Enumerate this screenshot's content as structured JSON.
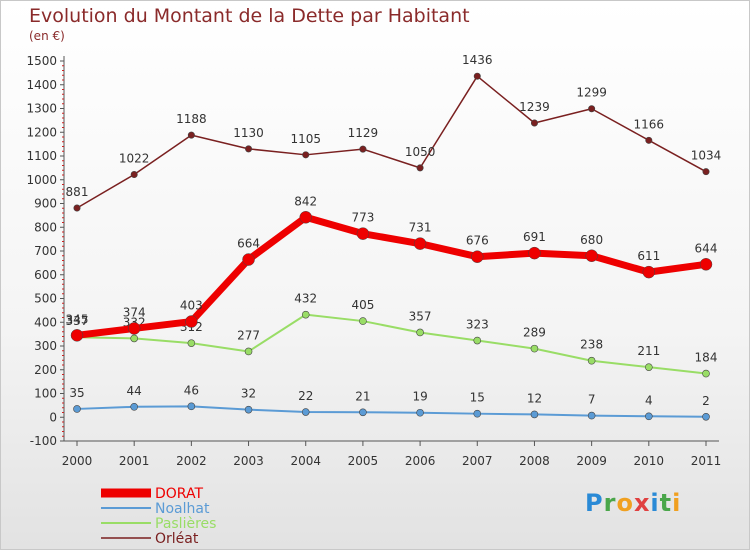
{
  "chart_data": {
    "type": "line",
    "title": "Evolution du Montant de la Dette par Habitant",
    "subtitle": "(en €)",
    "xlabel": "",
    "ylabel": "",
    "categories": [
      "2000",
      "2001",
      "2002",
      "2003",
      "2004",
      "2005",
      "2006",
      "2007",
      "2008",
      "2009",
      "2010",
      "2011"
    ],
    "y_ticks": [
      -100,
      0,
      100,
      200,
      300,
      400,
      500,
      600,
      700,
      800,
      900,
      1000,
      1100,
      1200,
      1300,
      1400,
      1500
    ],
    "ylim": [
      -100,
      1500
    ],
    "grid": false,
    "legend_position": "bottom-left",
    "series": [
      {
        "name": "DORAT",
        "color": "#ee0000",
        "values": [
          345,
          374,
          403,
          664,
          842,
          773,
          731,
          676,
          691,
          680,
          611,
          644
        ]
      },
      {
        "name": "Noalhat",
        "color": "#5b9bd5",
        "values": [
          35,
          44,
          46,
          32,
          22,
          21,
          19,
          15,
          12,
          7,
          4,
          2
        ]
      },
      {
        "name": "Paslières",
        "color": "#99dd66",
        "values": [
          337,
          332,
          312,
          277,
          432,
          405,
          357,
          323,
          289,
          238,
          211,
          184
        ]
      },
      {
        "name": "Orléat",
        "color": "#7a2020",
        "values": [
          881,
          1022,
          1188,
          1130,
          1105,
          1129,
          1050,
          1436,
          1239,
          1299,
          1166,
          1034
        ]
      }
    ]
  },
  "logo": {
    "letters": [
      "P",
      "r",
      "o",
      "x",
      "i",
      "t",
      "i"
    ],
    "colors": [
      "#2a8ad6",
      "#4aa64a",
      "#f0a020",
      "#e04040",
      "#2a8ad6",
      "#4aa64a",
      "#f0a020"
    ]
  }
}
